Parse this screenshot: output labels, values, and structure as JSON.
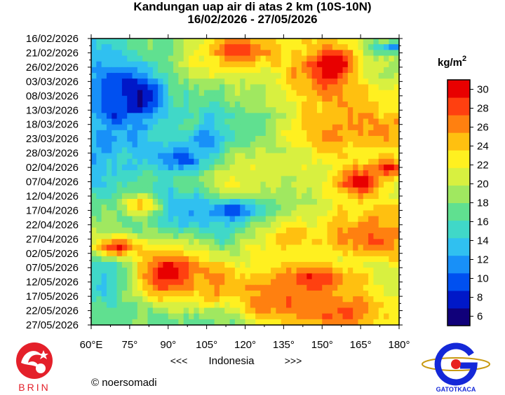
{
  "chart_data": {
    "type": "heatmap",
    "title": "Kandungan uap air di atas 2 km (10S-10N)",
    "subtitle": "16/02/2026 - 27/05/2026",
    "x_tick_labels": [
      "60°E",
      "75°",
      "90°",
      "105°",
      "120°",
      "135°",
      "150°",
      "165°",
      "180°"
    ],
    "x_range": [
      60,
      180
    ],
    "x_caption": {
      "left": "<<<",
      "center": "Indonesia",
      "right": ">>>"
    },
    "y_tick_labels": [
      "16/02/2026",
      "21/02/2026",
      "26/02/2026",
      "03/03/2026",
      "08/03/2026",
      "13/03/2026",
      "18/03/2026",
      "23/03/2026",
      "28/03/2026",
      "02/04/2026",
      "07/04/2026",
      "12/04/2026",
      "17/04/2026",
      "22/04/2026",
      "27/04/2026",
      "02/05/2026",
      "07/05/2026",
      "12/05/2026",
      "17/05/2026",
      "22/05/2026",
      "27/05/2026"
    ],
    "y_range": [
      "16/02/2026",
      "27/05/2026"
    ],
    "colorbar": {
      "unit": "kg/m",
      "unit_sup": "2",
      "tick_values": [
        6,
        8,
        10,
        12,
        14,
        16,
        18,
        20,
        22,
        24,
        26,
        28,
        30
      ],
      "range": [
        5,
        31
      ],
      "colors": [
        "#10007a",
        "#0018c8",
        "#0050f0",
        "#1890f8",
        "#30c0f0",
        "#40d8c8",
        "#60e090",
        "#a0e860",
        "#d8f040",
        "#fff020",
        "#ffc010",
        "#ff8010",
        "#ff4010",
        "#e80000"
      ]
    },
    "features": [
      {
        "lon": 72,
        "day": 22,
        "v": 8,
        "lonR": 12,
        "dayR": 9
      },
      {
        "lon": 80,
        "day": 20,
        "v": 7,
        "lonR": 7,
        "dayR": 5
      },
      {
        "lon": 68,
        "day": 34,
        "v": 11,
        "lonR": 10,
        "dayR": 7
      },
      {
        "lon": 64,
        "day": 18,
        "v": 10,
        "lonR": 6,
        "dayR": 8
      },
      {
        "lon": 96,
        "day": 42,
        "v": 10,
        "lonR": 10,
        "dayR": 5
      },
      {
        "lon": 106,
        "day": 35,
        "v": 12,
        "lonR": 8,
        "dayR": 4
      },
      {
        "lon": 96,
        "day": 60,
        "v": 13,
        "lonR": 10,
        "dayR": 6
      },
      {
        "lon": 115,
        "day": 60,
        "v": 9,
        "lonR": 9,
        "dayR": 3
      },
      {
        "lon": 70,
        "day": 82,
        "v": 13,
        "lonR": 8,
        "dayR": 4
      },
      {
        "lon": 178,
        "day": 3,
        "v": 11,
        "lonR": 8,
        "dayR": 2
      },
      {
        "lon": 118,
        "day": 4,
        "v": 28,
        "lonR": 13,
        "dayR": 5
      },
      {
        "lon": 150,
        "day": 12,
        "v": 28,
        "lonR": 12,
        "dayR": 10
      },
      {
        "lon": 156,
        "day": 9,
        "v": 31,
        "lonR": 5,
        "dayR": 4
      },
      {
        "lon": 160,
        "day": 32,
        "v": 26,
        "lonR": 18,
        "dayR": 8
      },
      {
        "lon": 164,
        "day": 50,
        "v": 30,
        "lonR": 9,
        "dayR": 5
      },
      {
        "lon": 176,
        "day": 45,
        "v": 30,
        "lonR": 5,
        "dayR": 3
      },
      {
        "lon": 90,
        "day": 82,
        "v": 30,
        "lonR": 12,
        "dayR": 8
      },
      {
        "lon": 70,
        "day": 73,
        "v": 28,
        "lonR": 9,
        "dayR": 3
      },
      {
        "lon": 108,
        "day": 85,
        "v": 26,
        "lonR": 6,
        "dayR": 5
      },
      {
        "lon": 145,
        "day": 85,
        "v": 28,
        "lonR": 18,
        "dayR": 6
      },
      {
        "lon": 155,
        "day": 95,
        "v": 28,
        "lonR": 16,
        "dayR": 5
      },
      {
        "lon": 130,
        "day": 92,
        "v": 27,
        "lonR": 12,
        "dayR": 6
      },
      {
        "lon": 170,
        "day": 70,
        "v": 27,
        "lonR": 12,
        "dayR": 5
      },
      {
        "lon": 80,
        "day": 58,
        "v": 25,
        "lonR": 5,
        "dayR": 3
      },
      {
        "lon": 138,
        "day": 70,
        "v": 25,
        "lonR": 14,
        "dayR": 5
      }
    ]
  },
  "credit": "© noersomadi",
  "logos": {
    "left_text": "BRIN",
    "right_text": "GATOTKACA"
  },
  "colors": {
    "brin_red": "#e4202a",
    "gatotkaca_blue": "#1428d8",
    "gatotkaca_red": "#e82020",
    "gatotkaca_gold": "#c89a10"
  }
}
